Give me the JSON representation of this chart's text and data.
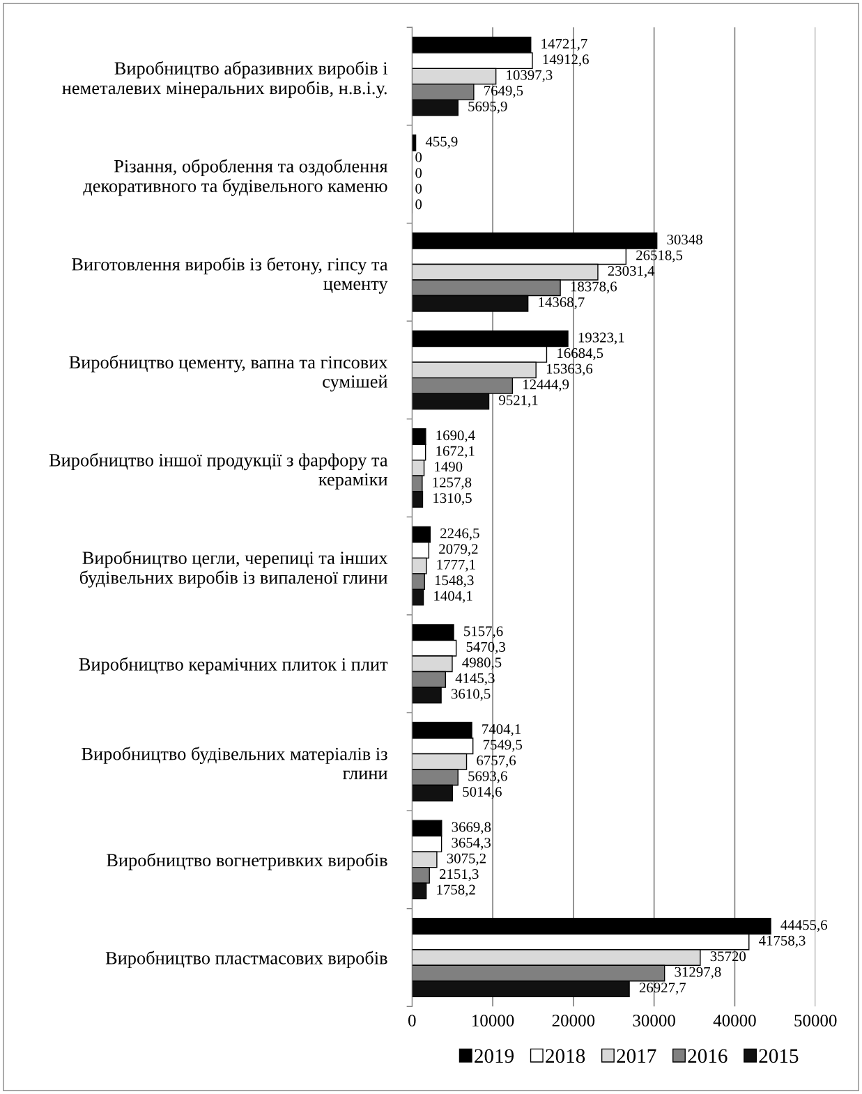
{
  "chart_data": {
    "type": "bar",
    "orientation": "horizontal",
    "categories": [
      "Виробництво абразивних виробів і\nнеметалевих мінеральних виробів, н.в.і.у.",
      "Різання, оброблення та оздоблення\nдекоративного та будівельного каменю",
      "Виготовлення виробів із бетону, гіпсу та\nцементу",
      "Виробництво цементу, вапна та гіпсових\nсумішей",
      "Виробництво іншої продукції з фарфору та\nкераміки",
      "Виробництво цегли, черепиці та інших\nбудівельних виробів із випаленої глини",
      "Виробництво керамічних плиток і плит",
      "Виробництво будівельних матеріалів із\nглини",
      "Виробництво вогнетривких виробів",
      "Виробництво пластмасових виробів"
    ],
    "series": [
      {
        "name": "2019",
        "color": "#000000",
        "values": [
          14721.7,
          455.9,
          30348,
          19323.1,
          1690.4,
          2246.5,
          5157.6,
          7404.1,
          3669.8,
          44455.6
        ],
        "value_labels": [
          "14721,7",
          "455,9",
          "30348",
          "19323,1",
          "1690,4",
          "2246,5",
          "5157,6",
          "7404,1",
          "3669,8",
          "44455,6"
        ]
      },
      {
        "name": "2018",
        "color": "#ffffff",
        "values": [
          14912.6,
          0,
          26518.5,
          16684.5,
          1672.1,
          2079.2,
          5470.3,
          7549.5,
          3654.3,
          41758.3
        ],
        "value_labels": [
          "14912,6",
          "0",
          "26518,5",
          "16684,5",
          "1672,1",
          "2079,2",
          "5470,3",
          "7549,5",
          "3654,3",
          "41758,3"
        ]
      },
      {
        "name": "2017",
        "color": "#d9d9d9",
        "values": [
          10397.3,
          0,
          23031.4,
          15363.6,
          1490,
          1777.1,
          4980.5,
          6757.6,
          3075.2,
          35720
        ],
        "value_labels": [
          "10397,3",
          "0",
          "23031,4",
          "15363,6",
          "1490",
          "1777,1",
          "4980,5",
          "6757,6",
          "3075,2",
          "35720"
        ]
      },
      {
        "name": "2016",
        "color": "#808080",
        "values": [
          7649.5,
          0,
          18378.6,
          12444.9,
          1257.8,
          1548.3,
          4145.3,
          5693.6,
          2151.3,
          31297.8
        ],
        "value_labels": [
          "7649,5",
          "0",
          "18378,6",
          "12444,9",
          "1257,8",
          "1548,3",
          "4145,3",
          "5693,6",
          "2151,3",
          "31297,8"
        ]
      },
      {
        "name": "2015",
        "color": "#111111",
        "values": [
          5695.9,
          0,
          14368.7,
          9521.1,
          1310.5,
          1404.1,
          3610.5,
          5014.6,
          1758.2,
          26927.7
        ],
        "value_labels": [
          "5695,9",
          "0",
          "14368,7",
          "9521,1",
          "1310,5",
          "1404,1",
          "3610,5",
          "5014,6",
          "1758,2",
          "26927,7"
        ]
      }
    ],
    "xlim": [
      0,
      50000
    ],
    "xticks": [
      0,
      10000,
      20000,
      30000,
      40000,
      50000
    ],
    "grid": "x",
    "legend": "bottom"
  }
}
